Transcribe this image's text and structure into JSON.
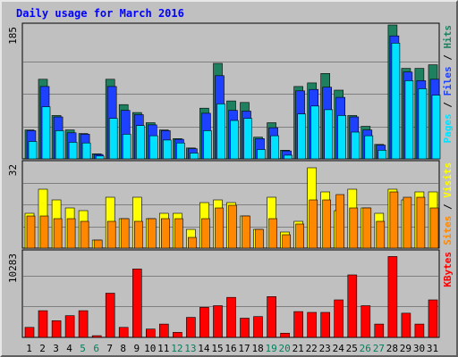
{
  "chart_data": {
    "type": "bar",
    "title": "Daily usage for March 2016",
    "x": [
      "1",
      "2",
      "3",
      "4",
      "5",
      "6",
      "7",
      "8",
      "9",
      "10",
      "11",
      "12",
      "13",
      "14",
      "15",
      "16",
      "17",
      "18",
      "19",
      "20",
      "21",
      "22",
      "23",
      "24",
      "25",
      "26",
      "27",
      "28",
      "29",
      "30",
      "31"
    ],
    "weekend_days": [
      "5",
      "6",
      "12",
      "13",
      "19",
      "20",
      "26",
      "27"
    ],
    "panels": [
      {
        "id": "hits-panel",
        "ymax_label": "185",
        "ymax": 185,
        "legend": [
          "Pages",
          "/",
          "Files",
          "/",
          "Hits"
        ],
        "series": [
          {
            "name": "Hits",
            "color": "#1f8060",
            "values": [
              40,
              110,
              60,
              40,
              35,
              7,
              110,
              75,
              64,
              50,
              40,
              28,
              15,
              70,
              132,
              80,
              78,
              30,
              50,
              12,
              100,
              105,
              118,
              95,
              60,
              45,
              20,
              185,
              125,
              125,
              130
            ]
          },
          {
            "name": "Files",
            "color": "#1e40ff",
            "values": [
              39,
              100,
              58,
              36,
              34,
              6,
              100,
              67,
              61,
              47,
              39,
              27,
              14,
              63,
              115,
              67,
              66,
              28,
              43,
              11,
              94,
              96,
              99,
              85,
              58,
              40,
              19,
              170,
              120,
              108,
              110
            ]
          },
          {
            "name": "Pages",
            "color": "#00e0ff",
            "values": [
              24,
              72,
              39,
              23,
              22,
              4,
              56,
              34,
              46,
              32,
              26,
              22,
              8,
              39,
              76,
              53,
              56,
              13,
              32,
              5,
              62,
              73,
              68,
              60,
              37,
              32,
              12,
              160,
              108,
              97,
              88
            ]
          }
        ]
      },
      {
        "id": "visits-panel",
        "ymax_label": "32",
        "ymax": 32,
        "legend": [
          "Sites",
          "/",
          "Visits"
        ],
        "series": [
          {
            "name": "Visits",
            "color": "#ffff00",
            "values": [
              13,
              22,
              18,
              15,
              14,
              3,
              19,
              11,
              19,
              11,
              13,
              13,
              7,
              17,
              18,
              17,
              12,
              7,
              19,
              6,
              10,
              30,
              21,
              14,
              22,
              15,
              13,
              22,
              18,
              21,
              21
            ]
          },
          {
            "name": "Sites",
            "color": "#ff8800",
            "values": [
              12,
              12,
              11,
              11,
              10,
              3,
              10,
              11,
              10,
              11,
              11,
              11,
              4,
              11,
              15,
              16,
              12,
              7,
              11,
              5,
              9,
              18,
              18,
              20,
              15,
              15,
              10,
              21,
              19,
              19,
              15
            ]
          }
        ]
      },
      {
        "id": "kbytes-panel",
        "ymax_label": "10283",
        "ymax": 10283,
        "legend": [
          "KBytes"
        ],
        "series": [
          {
            "name": "KBytes",
            "color": "#ff0000",
            "values": [
              1200,
              3200,
              2000,
              2600,
              3200,
              200,
              5300,
              1200,
              8200,
              1000,
              1600,
              600,
              2400,
              3600,
              3800,
              4800,
              2300,
              2500,
              4900,
              500,
              3100,
              3000,
              3000,
              4500,
              7500,
              3800,
              1600,
              9700,
              2900,
              1600,
              4500
            ]
          }
        ]
      }
    ],
    "grid": true,
    "colors": {
      "background": "#c0c0c0",
      "plot_bg": "#c0c0c0",
      "gridline": "#808080",
      "title": "#0000ff",
      "weekday_label": "#000000",
      "weekend_label": "#00805c",
      "legend_sep": "#000000"
    }
  }
}
